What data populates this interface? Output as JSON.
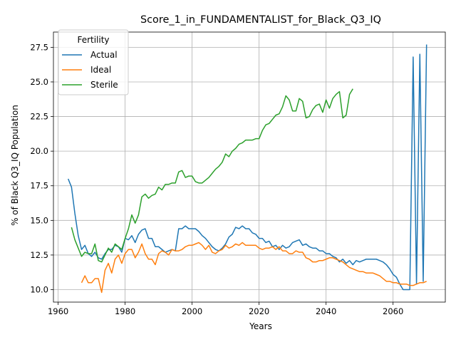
{
  "chart_data": {
    "type": "line",
    "title": "Score_1_in_FUNDAMENTALIST_for_Black_Q3_IQ",
    "xlabel": "Years",
    "ylabel": "% of Black Q3_IQ Population",
    "xlim": [
      1958.6,
      2075.6
    ],
    "ylim": [
      9.1,
      28.6
    ],
    "xticks": [
      1960,
      1980,
      2000,
      2020,
      2040,
      2060
    ],
    "yticks": [
      10.0,
      12.5,
      15.0,
      17.5,
      20.0,
      22.5,
      25.0,
      27.5
    ],
    "xtick_labels": [
      "1960",
      "1980",
      "2000",
      "2020",
      "2040",
      "2060"
    ],
    "ytick_labels": [
      "10.0",
      "12.5",
      "15.0",
      "17.5",
      "20.0",
      "22.5",
      "25.0",
      "27.5"
    ],
    "grid": true,
    "legend": {
      "title": "Fertility",
      "placement": "top-left"
    },
    "series": [
      {
        "name": "Actual",
        "color": "#1f77b4",
        "x": [
          1963,
          1964,
          1965,
          1966,
          1967,
          1968,
          1969,
          1970,
          1971,
          1972,
          1973,
          1974,
          1975,
          1976,
          1977,
          1978,
          1979,
          1980,
          1981,
          1982,
          1983,
          1984,
          1985,
          1986,
          1987,
          1988,
          1989,
          1990,
          1991,
          1992,
          1993,
          1994,
          1995,
          1996,
          1997,
          1998,
          1999,
          2000,
          2001,
          2002,
          2003,
          2004,
          2005,
          2006,
          2007,
          2008,
          2009,
          2010,
          2011,
          2012,
          2013,
          2014,
          2015,
          2016,
          2017,
          2018,
          2019,
          2020,
          2021,
          2022,
          2023,
          2024,
          2025,
          2026,
          2027,
          2028,
          2029,
          2030,
          2031,
          2032,
          2033,
          2034,
          2035,
          2036,
          2037,
          2038,
          2039,
          2040,
          2041,
          2042,
          2043,
          2044,
          2045,
          2046,
          2047,
          2048,
          2049,
          2050,
          2051,
          2052,
          2053,
          2054,
          2055,
          2056,
          2057,
          2058,
          2059,
          2060,
          2061,
          2062,
          2063,
          2064,
          2065,
          2066,
          2067,
          2068,
          2069,
          2070
        ],
        "values": [
          18.0,
          17.4,
          15.5,
          13.9,
          12.9,
          13.2,
          12.6,
          12.4,
          12.7,
          12.3,
          12.2,
          12.6,
          12.9,
          12.9,
          13.2,
          13.1,
          12.7,
          13.7,
          13.6,
          13.9,
          13.4,
          14.0,
          14.3,
          14.4,
          13.7,
          13.7,
          13.1,
          13.1,
          12.9,
          12.7,
          12.8,
          12.9,
          12.8,
          14.4,
          14.4,
          14.6,
          14.4,
          14.4,
          14.4,
          14.2,
          13.9,
          13.7,
          13.4,
          13.1,
          12.9,
          12.8,
          13.0,
          13.3,
          13.8,
          14.0,
          14.5,
          14.4,
          14.6,
          14.4,
          14.4,
          14.1,
          14.0,
          13.7,
          13.7,
          13.4,
          13.5,
          13.1,
          13.2,
          12.9,
          13.2,
          13.0,
          13.1,
          13.4,
          13.5,
          13.6,
          13.2,
          13.3,
          13.1,
          13.0,
          13.0,
          12.8,
          12.8,
          12.6,
          12.6,
          12.4,
          12.3,
          12.0,
          12.2,
          11.9,
          12.1,
          11.8,
          12.1,
          12.0,
          12.1,
          12.2,
          12.2,
          12.2,
          12.2,
          12.1,
          12.0,
          11.8,
          11.5,
          11.1,
          10.9,
          10.4,
          10.0,
          10.0,
          10.0,
          26.8,
          10.4,
          27.0,
          10.6,
          27.7
        ]
      },
      {
        "name": "Ideal",
        "color": "#ff7f0e",
        "x": [
          1967,
          1968,
          1969,
          1970,
          1971,
          1972,
          1973,
          1974,
          1975,
          1976,
          1977,
          1978,
          1979,
          1980,
          1981,
          1982,
          1983,
          1984,
          1985,
          1986,
          1987,
          1988,
          1989,
          1990,
          1991,
          1992,
          1993,
          1994,
          1995,
          1996,
          1997,
          1998,
          1999,
          2000,
          2001,
          2002,
          2003,
          2004,
          2005,
          2006,
          2007,
          2008,
          2009,
          2010,
          2011,
          2012,
          2013,
          2014,
          2015,
          2016,
          2017,
          2018,
          2019,
          2020,
          2021,
          2022,
          2023,
          2024,
          2025,
          2026,
          2027,
          2028,
          2029,
          2030,
          2031,
          2032,
          2033,
          2034,
          2035,
          2036,
          2037,
          2038,
          2039,
          2040,
          2041,
          2042,
          2043,
          2044,
          2045,
          2046,
          2047,
          2048,
          2049,
          2050,
          2051,
          2052,
          2053,
          2054,
          2055,
          2056,
          2057,
          2058,
          2059,
          2060,
          2061,
          2062,
          2063,
          2064,
          2065,
          2066,
          2067,
          2068,
          2069,
          2070
        ],
        "values": [
          10.5,
          11.0,
          10.5,
          10.5,
          10.8,
          10.8,
          9.8,
          11.4,
          11.9,
          11.2,
          12.2,
          12.5,
          11.9,
          12.6,
          12.9,
          12.9,
          12.3,
          12.7,
          13.3,
          12.6,
          12.2,
          12.2,
          11.8,
          12.6,
          12.8,
          12.7,
          12.5,
          12.9,
          12.8,
          12.8,
          12.9,
          13.1,
          13.2,
          13.2,
          13.3,
          13.4,
          13.2,
          12.9,
          13.2,
          12.7,
          12.6,
          12.8,
          12.9,
          13.2,
          13.0,
          13.1,
          13.3,
          13.2,
          13.4,
          13.2,
          13.2,
          13.2,
          13.2,
          13.0,
          12.9,
          13.0,
          13.0,
          13.1,
          12.9,
          13.1,
          12.8,
          12.8,
          12.6,
          12.6,
          12.8,
          12.7,
          12.7,
          12.3,
          12.2,
          12.0,
          12.0,
          12.1,
          12.1,
          12.2,
          12.3,
          12.3,
          12.2,
          12.1,
          12.0,
          11.8,
          11.6,
          11.5,
          11.4,
          11.3,
          11.3,
          11.2,
          11.2,
          11.2,
          11.1,
          11.0,
          10.8,
          10.6,
          10.6,
          10.5,
          10.5,
          10.4,
          10.4,
          10.4,
          10.3,
          10.3,
          10.4,
          10.5,
          10.5,
          10.6
        ]
      },
      {
        "name": "Sterile",
        "color": "#2ca02c",
        "x": [
          1964,
          1965,
          1966,
          1967,
          1968,
          1969,
          1970,
          1971,
          1972,
          1973,
          1974,
          1975,
          1976,
          1977,
          1978,
          1979,
          1980,
          1981,
          1982,
          1983,
          1984,
          1985,
          1986,
          1987,
          1988,
          1989,
          1990,
          1991,
          1992,
          1993,
          1994,
          1995,
          1996,
          1997,
          1998,
          1999,
          2000,
          2001,
          2002,
          2003,
          2004,
          2005,
          2006,
          2007,
          2008,
          2009,
          2010,
          2011,
          2012,
          2013,
          2014,
          2015,
          2016,
          2017,
          2018,
          2019,
          2020,
          2021,
          2022,
          2023,
          2024,
          2025,
          2026,
          2027,
          2028,
          2029,
          2030,
          2031,
          2032,
          2033,
          2034,
          2035,
          2036,
          2037,
          2038,
          2039,
          2040,
          2041,
          2042,
          2043,
          2044,
          2045,
          2046,
          2047,
          2048
        ],
        "values": [
          14.5,
          13.6,
          13.0,
          12.4,
          12.7,
          12.6,
          12.6,
          13.3,
          12.1,
          12.0,
          12.5,
          13.0,
          12.7,
          13.3,
          13.1,
          12.9,
          13.7,
          14.4,
          15.4,
          14.8,
          15.4,
          16.7,
          16.9,
          16.6,
          16.8,
          16.9,
          17.4,
          17.2,
          17.6,
          17.6,
          17.7,
          17.7,
          18.5,
          18.6,
          18.1,
          18.2,
          18.2,
          17.8,
          17.7,
          17.7,
          17.9,
          18.1,
          18.4,
          18.7,
          18.9,
          19.2,
          19.8,
          19.6,
          20.0,
          20.2,
          20.5,
          20.6,
          20.8,
          20.8,
          20.8,
          20.9,
          20.9,
          21.5,
          21.9,
          22.0,
          22.3,
          22.6,
          22.7,
          23.2,
          24.0,
          23.7,
          22.9,
          22.9,
          23.8,
          23.6,
          22.4,
          22.5,
          23.0,
          23.3,
          23.4,
          22.8,
          23.7,
          23.1,
          23.8,
          24.1,
          24.3,
          22.4,
          22.6,
          24.1,
          24.5
        ]
      }
    ]
  }
}
